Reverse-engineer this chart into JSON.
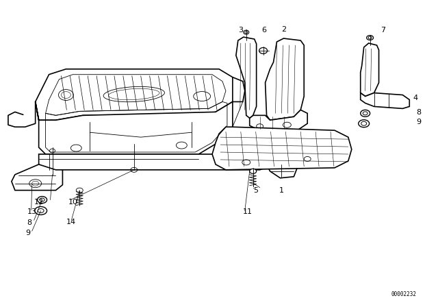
{
  "bg_color": "#ffffff",
  "line_color": "#000000",
  "fig_width": 6.4,
  "fig_height": 4.48,
  "dpi": 100,
  "diagram_id": "00002232",
  "lw_main": 1.2,
  "lw_thin": 0.6,
  "lw_detail": 0.4
}
